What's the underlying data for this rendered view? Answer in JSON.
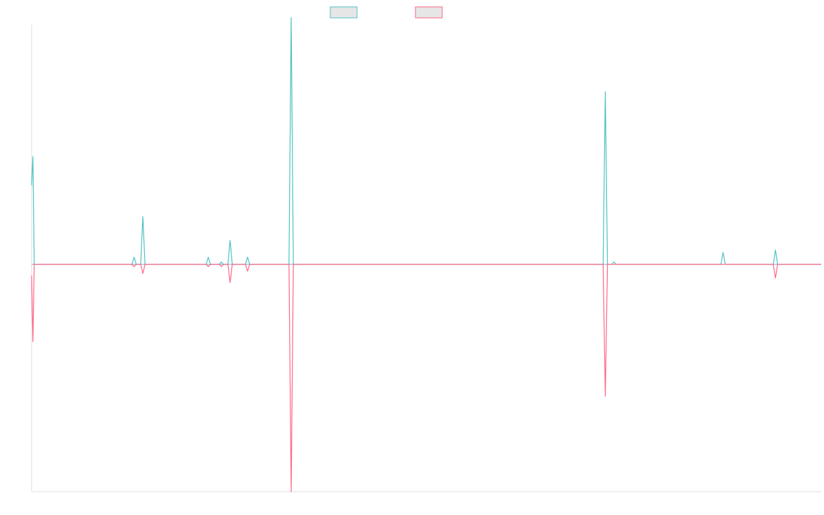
{
  "chart_data": {
    "type": "line",
    "title": "",
    "xlabel": "",
    "ylabel": "",
    "x_count": 170,
    "ylim": [
      -100,
      100
    ],
    "grid": false,
    "legend_placement": "top-center",
    "series": [
      {
        "color": "#4bc0c0",
        "fill": "#e6e6e6",
        "points": [
          [
            0,
            33
          ],
          [
            0.3,
            45
          ],
          [
            0.6,
            0
          ],
          [
            23,
            0
          ],
          [
            23.5,
            3
          ],
          [
            24,
            0
          ],
          [
            25,
            0
          ],
          [
            25.5,
            20
          ],
          [
            26,
            0
          ],
          [
            40,
            0
          ],
          [
            40.5,
            3
          ],
          [
            41,
            0
          ],
          [
            43,
            0
          ],
          [
            43.5,
            1
          ],
          [
            44,
            0
          ],
          [
            45,
            0
          ],
          [
            45.5,
            10
          ],
          [
            46,
            0
          ],
          [
            49,
            0
          ],
          [
            49.5,
            3
          ],
          [
            50,
            0
          ],
          [
            59,
            0
          ],
          [
            59.5,
            103
          ],
          [
            60,
            0
          ],
          [
            131,
            0
          ],
          [
            131.5,
            72
          ],
          [
            132,
            0
          ],
          [
            133,
            0
          ],
          [
            133.5,
            1
          ],
          [
            134,
            0
          ],
          [
            158,
            0
          ],
          [
            158.5,
            5
          ],
          [
            159,
            0
          ],
          [
            170,
            0
          ],
          [
            170.5,
            6
          ],
          [
            171,
            0
          ],
          [
            181,
            0
          ]
        ]
      },
      {
        "color": "#ff6384",
        "fill": "#e6e6e6",
        "points": [
          [
            0,
            -5
          ],
          [
            0.3,
            -34
          ],
          [
            0.6,
            0
          ],
          [
            23,
            0
          ],
          [
            23.5,
            -1
          ],
          [
            24,
            0
          ],
          [
            25,
            0
          ],
          [
            25.5,
            -4
          ],
          [
            26,
            0
          ],
          [
            40,
            0
          ],
          [
            40.5,
            -1
          ],
          [
            41,
            0
          ],
          [
            43,
            0
          ],
          [
            43.5,
            -1
          ],
          [
            44,
            0
          ],
          [
            45,
            0
          ],
          [
            45.5,
            -8
          ],
          [
            46,
            0
          ],
          [
            49,
            0
          ],
          [
            49.5,
            -3
          ],
          [
            50,
            0
          ],
          [
            59,
            0
          ],
          [
            59.5,
            -100
          ],
          [
            60,
            0
          ],
          [
            131,
            0
          ],
          [
            131.5,
            -58
          ],
          [
            132,
            0
          ],
          [
            158,
            0
          ],
          [
            158.5,
            0
          ],
          [
            159,
            0
          ],
          [
            170,
            0
          ],
          [
            170.5,
            -6
          ],
          [
            171,
            0
          ],
          [
            181,
            0
          ]
        ]
      }
    ]
  }
}
